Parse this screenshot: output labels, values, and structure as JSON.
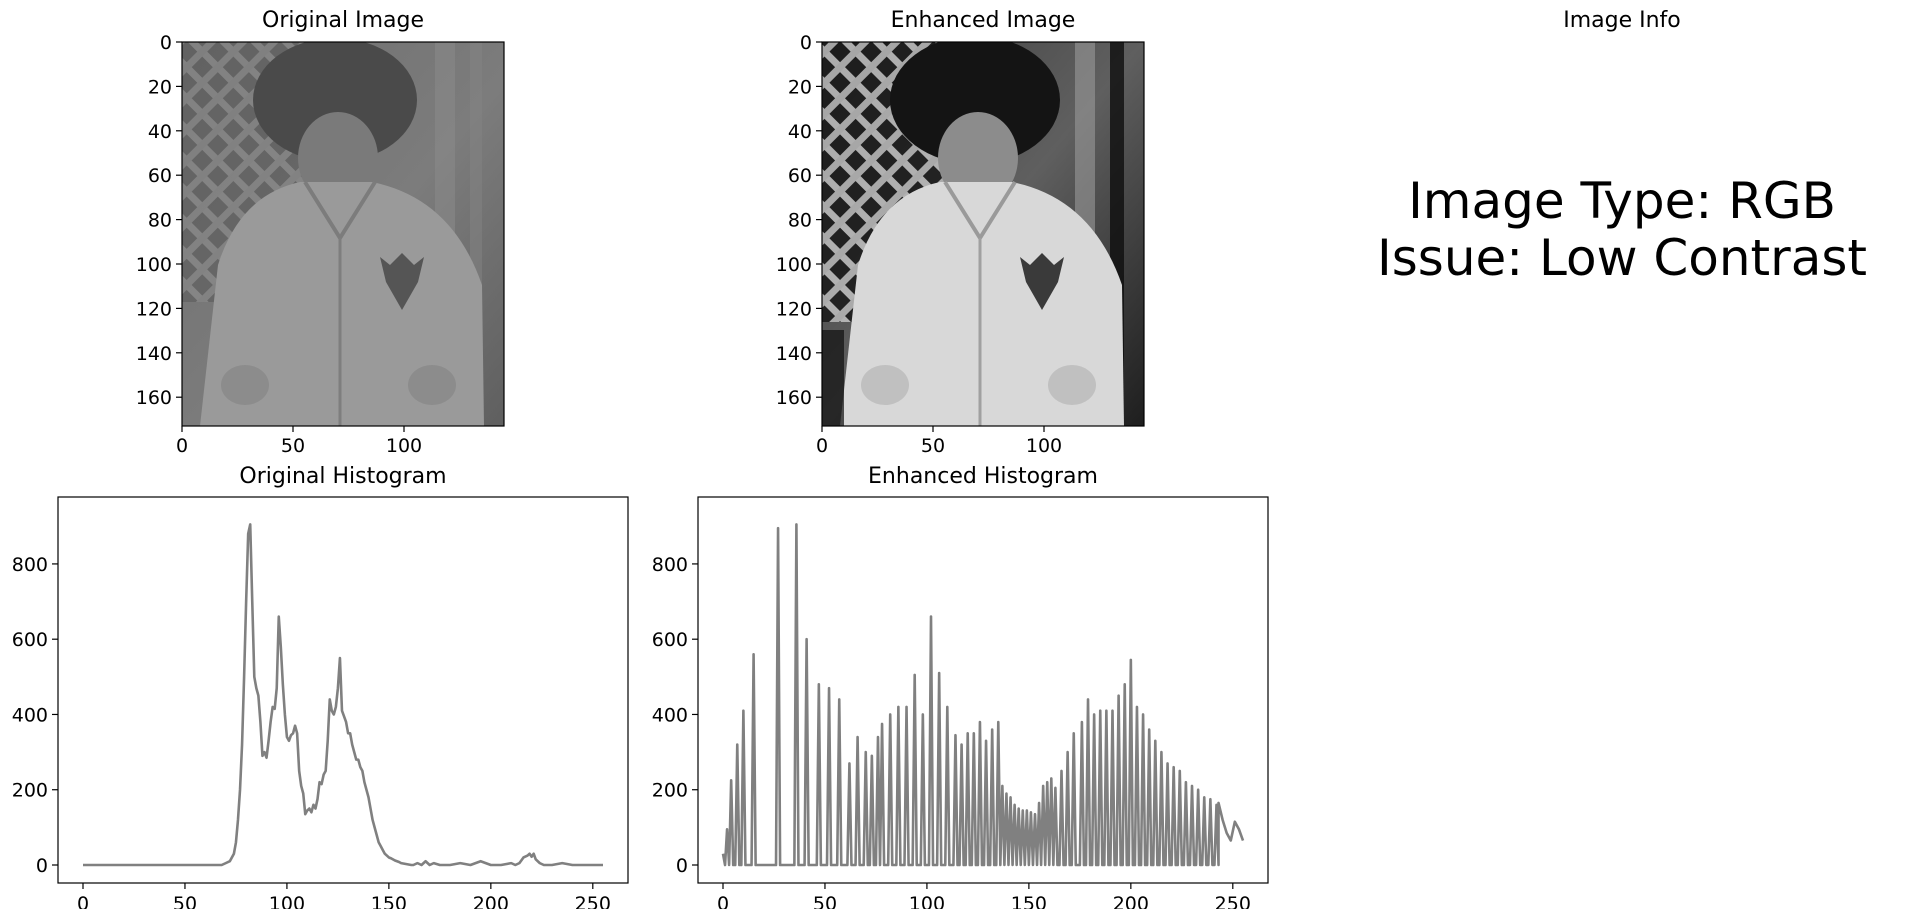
{
  "panels": {
    "original_image": {
      "title": "Original Image",
      "x_ticks": [
        "0",
        "50",
        "100"
      ],
      "y_ticks": [
        "0",
        "20",
        "40",
        "60",
        "80",
        "100",
        "120",
        "140",
        "160"
      ]
    },
    "enhanced_image": {
      "title": "Enhanced Image",
      "x_ticks": [
        "0",
        "50",
        "100"
      ],
      "y_ticks": [
        "0",
        "20",
        "40",
        "60",
        "80",
        "100",
        "120",
        "140",
        "160"
      ]
    },
    "info": {
      "title": "Image Info",
      "line1": "Image Type: RGB",
      "line2": "Issue: Low Contrast"
    }
  },
  "colors": {
    "histogram_line": "#808080",
    "axes": "#000000",
    "background": "#ffffff"
  },
  "chart_data": [
    {
      "type": "line",
      "title": "Original Histogram",
      "xlabel": "",
      "ylabel": "",
      "xlim": [
        0,
        255
      ],
      "ylim": [
        0,
        930
      ],
      "x_ticks": [
        0,
        50,
        100,
        150,
        200,
        250
      ],
      "y_ticks": [
        0,
        200,
        400,
        600,
        800
      ],
      "x": [
        0,
        20,
        40,
        60,
        68,
        70,
        72,
        74,
        75,
        76,
        77,
        78,
        79,
        80,
        81,
        82,
        83,
        84,
        85,
        86,
        87,
        88,
        89,
        90,
        91,
        92,
        93,
        94,
        95,
        96,
        97,
        98,
        99,
        100,
        101,
        102,
        103,
        104,
        105,
        106,
        107,
        108,
        109,
        110,
        111,
        112,
        113,
        114,
        115,
        116,
        117,
        118,
        119,
        120,
        121,
        122,
        123,
        124,
        125,
        126,
        127,
        128,
        129,
        130,
        131,
        132,
        133,
        134,
        135,
        136,
        137,
        138,
        139,
        140,
        141,
        142,
        143,
        144,
        145,
        146,
        147,
        148,
        149,
        150,
        151,
        152,
        153,
        154,
        155,
        156,
        157,
        158,
        159,
        160,
        161,
        162,
        164,
        166,
        168,
        170,
        172,
        175,
        180,
        185,
        190,
        195,
        200,
        205,
        210,
        212,
        214,
        216,
        218,
        219,
        220,
        221,
        222,
        224,
        226,
        230,
        235,
        240,
        245,
        250,
        255
      ],
      "values": [
        0,
        0,
        0,
        0,
        0,
        5,
        10,
        30,
        60,
        120,
        200,
        320,
        500,
        700,
        880,
        905,
        700,
        500,
        470,
        450,
        380,
        290,
        300,
        285,
        330,
        380,
        420,
        415,
        470,
        660,
        580,
        480,
        400,
        340,
        330,
        345,
        350,
        370,
        350,
        250,
        210,
        190,
        135,
        145,
        150,
        140,
        160,
        150,
        175,
        220,
        215,
        240,
        250,
        330,
        440,
        410,
        400,
        420,
        470,
        550,
        410,
        395,
        380,
        350,
        350,
        320,
        300,
        280,
        280,
        260,
        250,
        220,
        200,
        180,
        150,
        120,
        100,
        80,
        60,
        50,
        40,
        30,
        25,
        20,
        18,
        15,
        12,
        10,
        8,
        5,
        4,
        3,
        2,
        1,
        0,
        0,
        5,
        0,
        10,
        0,
        5,
        0,
        0,
        5,
        0,
        10,
        0,
        0,
        5,
        0,
        5,
        20,
        25,
        30,
        22,
        30,
        15,
        5,
        0,
        0,
        5,
        0,
        0,
        0,
        0
      ]
    },
    {
      "type": "line",
      "title": "Enhanced Histogram",
      "xlabel": "",
      "ylabel": "",
      "xlim": [
        0,
        255
      ],
      "ylim": [
        0,
        930
      ],
      "x_ticks": [
        0,
        50,
        100,
        150,
        200,
        250
      ],
      "y_ticks": [
        0,
        200,
        400,
        600,
        800
      ],
      "spikes": [
        [
          0,
          30
        ],
        [
          2,
          95
        ],
        [
          4,
          225
        ],
        [
          7,
          320
        ],
        [
          10,
          410
        ],
        [
          15,
          560
        ],
        [
          27,
          895
        ],
        [
          36,
          905
        ],
        [
          41,
          600
        ],
        [
          47,
          480
        ],
        [
          52,
          470
        ],
        [
          57,
          440
        ],
        [
          62,
          270
        ],
        [
          66,
          340
        ],
        [
          70,
          300
        ],
        [
          73,
          290
        ],
        [
          76,
          340
        ],
        [
          78,
          375
        ],
        [
          82,
          400
        ],
        [
          86,
          420
        ],
        [
          90,
          420
        ],
        [
          94,
          505
        ],
        [
          98,
          400
        ],
        [
          102,
          660
        ],
        [
          106,
          510
        ],
        [
          110,
          420
        ],
        [
          114,
          345
        ],
        [
          117,
          320
        ],
        [
          120,
          350
        ],
        [
          123,
          350
        ],
        [
          126,
          380
        ],
        [
          129,
          330
        ],
        [
          132,
          360
        ],
        [
          135,
          380
        ],
        [
          137,
          210
        ],
        [
          139,
          190
        ],
        [
          141,
          180
        ],
        [
          143,
          160
        ],
        [
          145,
          150
        ],
        [
          147,
          145
        ],
        [
          149,
          145
        ],
        [
          151,
          140
        ],
        [
          153,
          135
        ],
        [
          155,
          165
        ],
        [
          157,
          210
        ],
        [
          159,
          220
        ],
        [
          161,
          230
        ],
        [
          163,
          205
        ],
        [
          166,
          250
        ],
        [
          169,
          300
        ],
        [
          172,
          350
        ],
        [
          176,
          380
        ],
        [
          179,
          440
        ],
        [
          182,
          400
        ],
        [
          185,
          410
        ],
        [
          188,
          410
        ],
        [
          191,
          410
        ],
        [
          194,
          450
        ],
        [
          197,
          480
        ],
        [
          200,
          545
        ],
        [
          203,
          420
        ],
        [
          206,
          400
        ],
        [
          209,
          360
        ],
        [
          212,
          330
        ],
        [
          215,
          300
        ],
        [
          218,
          270
        ],
        [
          221,
          260
        ],
        [
          224,
          250
        ],
        [
          227,
          220
        ],
        [
          230,
          210
        ],
        [
          233,
          200
        ],
        [
          236,
          180
        ],
        [
          239,
          175
        ],
        [
          242,
          160
        ]
      ],
      "tail_x": [
        243,
        245,
        247,
        249,
        251,
        253,
        255
      ],
      "tail_y": [
        165,
        120,
        85,
        65,
        115,
        95,
        65
      ]
    }
  ]
}
